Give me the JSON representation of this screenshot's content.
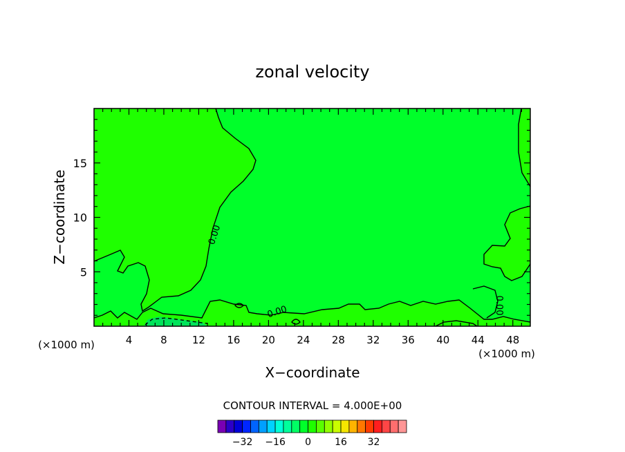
{
  "chart_data": {
    "type": "heatmap",
    "title": "zonal velocity",
    "xlabel": "X−coordinate",
    "ylabel": "Z−coordinate",
    "x_unit_left": "(×1000 m)",
    "x_unit_right": "(×1000 m)",
    "xlim": [
      0,
      50
    ],
    "ylim": [
      0,
      20
    ],
    "x_ticks": [
      4,
      8,
      12,
      16,
      20,
      24,
      28,
      32,
      36,
      40,
      44,
      48
    ],
    "x_tick_labels": [
      "4",
      "8",
      "12",
      "16",
      "20",
      "24",
      "28",
      "32",
      "36",
      "40",
      "44",
      "48"
    ],
    "y_ticks": [
      5,
      10,
      15
    ],
    "y_tick_labels": [
      "5",
      "10",
      "15"
    ],
    "contour_interval_text": "CONTOUR INTERVAL = 4.000E+00",
    "contour_labels": [
      "0.00",
      "0.00",
      "0.00"
    ],
    "background_color": "#00ff2a",
    "regions": [
      {
        "level": "0 to 4",
        "color": "#1fff00",
        "area": "upper-left, x 0–18, z 3–20"
      },
      {
        "level": "0 to 4",
        "color": "#1fff00",
        "area": "right edge, x 44–50, z 4–11 and z 13–20"
      },
      {
        "level": "0 to 4",
        "color": "#1fff00",
        "area": "bottom band, z 0–2"
      },
      {
        "level": "-4 to 0",
        "color": "#00ff2a",
        "area": "center, x 18–45"
      },
      {
        "level": "-8 to -4",
        "color": "#00e35a",
        "area": "small patch near x 6–12, z 0"
      }
    ],
    "colorbar": {
      "colors": [
        "#7a00b4",
        "#2c00c8",
        "#0000d8",
        "#0026ff",
        "#0064ff",
        "#00a0ff",
        "#00d2ff",
        "#00ffd8",
        "#00ff9c",
        "#00ff64",
        "#00ff2a",
        "#1fff00",
        "#5aff00",
        "#94ff00",
        "#caff00",
        "#f5e600",
        "#ffb400",
        "#ff7800",
        "#ff3c00",
        "#ff1e1e",
        "#ff4646",
        "#ff6e6e",
        "#ff9696"
      ],
      "tick_values": [
        -32,
        -16,
        0,
        16,
        32
      ],
      "tick_labels": [
        "−32",
        "−16",
        "0",
        "16",
        "32"
      ]
    }
  }
}
